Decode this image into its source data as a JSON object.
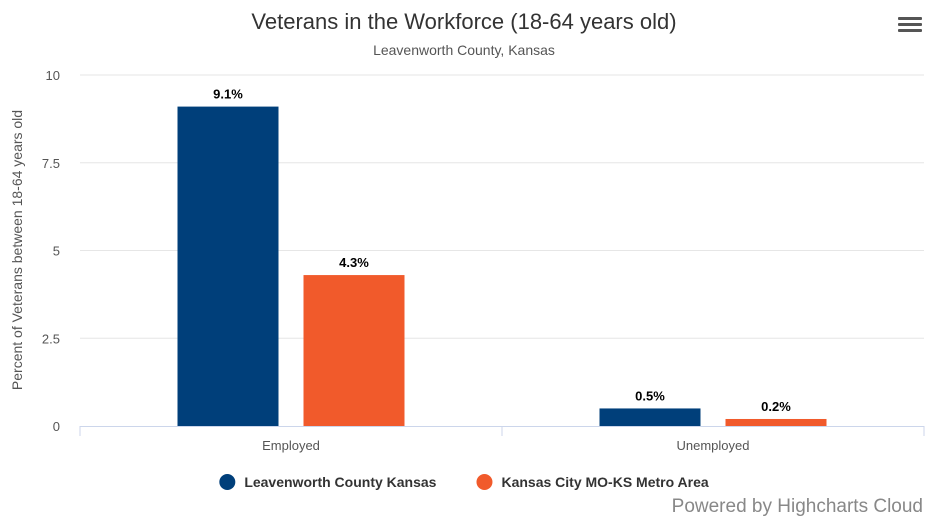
{
  "chart_data": {
    "type": "bar",
    "title": "Veterans in the Workforce (18-64 years old)",
    "subtitle": "Leavenworth County, Kansas",
    "xlabel": "",
    "ylabel": "Percent of Veterans between 18-64 years old",
    "categories": [
      "Employed",
      "Unemployed"
    ],
    "ylim": [
      0,
      10
    ],
    "yticks": [
      0,
      2.5,
      5,
      7.5,
      10
    ],
    "ytick_labels": [
      "0",
      "2.5",
      "5",
      "7.5",
      "10"
    ],
    "grid": true,
    "legend_position": "bottom-center",
    "series": [
      {
        "name": "Leavenworth County Kansas",
        "color": "#003f7a",
        "values": [
          9.1,
          0.5
        ],
        "labels": [
          "9.1%",
          "0.5%"
        ]
      },
      {
        "name": "Kansas City MO-KS Metro Area",
        "color": "#f15a2b",
        "values": [
          4.3,
          0.2
        ],
        "labels": [
          "4.3%",
          "0.2%"
        ]
      }
    ]
  },
  "menu_icon": "hamburger-menu-icon",
  "credit": "Powered by Highcharts Cloud"
}
